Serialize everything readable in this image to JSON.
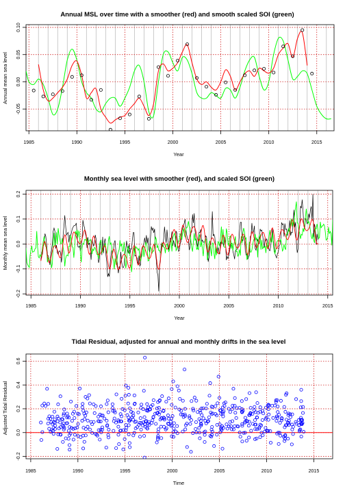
{
  "colors": {
    "smoother": "#ff0000",
    "soi": "#00ff00",
    "monthly_line": "#000000",
    "points": "#000000",
    "residual_points": "#0000ff",
    "zero_line": "#ff0000",
    "grid_red": "#cc0000",
    "grid_gray": "#bebebe"
  },
  "chart_data": [
    {
      "type": "line",
      "title": "Annual MSL over time with a smoother (red) and smooth scaled SOI (green)",
      "xlabel": "Year",
      "ylabel": "Annual mean sea level",
      "xlim": [
        1984.7,
        2016.8
      ],
      "ylim": [
        -0.09,
        0.105
      ],
      "x_ticks": [
        1985,
        1990,
        1995,
        2000,
        2005,
        2010,
        2015
      ],
      "x_tick_labels": [
        "1985",
        "1990",
        "1995",
        "2000",
        "2005",
        "2010",
        "2015"
      ],
      "y_ticks": [
        -0.05,
        0.0,
        0.05,
        0.1
      ],
      "y_tick_labels": [
        "-0.05",
        "0.00",
        "0.05",
        "0.10"
      ],
      "grid": "red dotted lines at the y ticks and at 1985, 1990, 1995, 2000, 2005, 2010, 2015; gray vertical lines at each year",
      "series": [
        {
          "name": "Annual MSL",
          "kind": "points",
          "color": "#000000",
          "x": [
            1985.5,
            1986.5,
            1987.5,
            1988.5,
            1989.5,
            1990.5,
            1991.5,
            1992.5,
            1993.5,
            1994.5,
            1995.5,
            1996.5,
            1997.5,
            1998.5,
            1999.5,
            2000.5,
            2001.5,
            2002.5,
            2003.5,
            2004.5,
            2005.5,
            2006.5,
            2007.5,
            2008.5,
            2009.5,
            2010.5,
            2011.5,
            2012.5,
            2013.5,
            2014.5
          ],
          "y": [
            -0.016,
            -0.027,
            -0.023,
            -0.017,
            0.009,
            0.012,
            -0.033,
            -0.015,
            -0.088,
            -0.067,
            -0.06,
            -0.027,
            -0.068,
            0.027,
            0.011,
            0.039,
            0.069,
            0.007,
            -0.009,
            -0.024,
            -0.001,
            -0.015,
            0.012,
            0.021,
            0.024,
            0.017,
            0.065,
            0.047,
            0.095,
            0.015
          ]
        },
        {
          "name": "Smoother",
          "kind": "line",
          "color": "#ff0000",
          "x": [
            1986.0,
            1986.5,
            1987.0,
            1987.5,
            1988.0,
            1988.5,
            1989.0,
            1989.5,
            1990.0,
            1990.5,
            1991.0,
            1991.5,
            1992.0,
            1992.5,
            1993.0,
            1993.5,
            1994.0,
            1994.5,
            1995.0,
            1995.5,
            1996.0,
            1996.5,
            1997.0,
            1997.5,
            1998.0,
            1998.5,
            1999.0,
            1999.5,
            2000.0,
            2000.5,
            2001.0,
            2001.5,
            2002.0,
            2002.5,
            2003.0,
            2003.5,
            2004.0,
            2004.5,
            2005.0,
            2005.5,
            2006.0,
            2006.5,
            2007.0,
            2007.5,
            2008.0,
            2008.5,
            2009.0,
            2009.5,
            2010.0,
            2010.5,
            2011.0,
            2011.5,
            2012.0,
            2012.5,
            2013.0,
            2013.5,
            2014.0
          ],
          "y": [
            0.032,
            -0.015,
            -0.035,
            -0.03,
            -0.02,
            -0.01,
            0.005,
            0.03,
            0.038,
            0.012,
            -0.03,
            -0.02,
            -0.013,
            -0.05,
            -0.065,
            -0.076,
            -0.07,
            -0.065,
            -0.062,
            -0.05,
            -0.04,
            -0.03,
            -0.045,
            -0.062,
            -0.04,
            0.02,
            0.033,
            0.02,
            0.025,
            0.035,
            0.055,
            0.068,
            0.035,
            0.005,
            -0.005,
            0.0,
            -0.01,
            -0.015,
            0.0,
            0.022,
            0.01,
            -0.015,
            0.0,
            0.015,
            0.02,
            0.01,
            0.025,
            0.02,
            0.016,
            0.025,
            0.05,
            0.062,
            0.07,
            0.045,
            0.08,
            0.09,
            0.03
          ]
        },
        {
          "name": "Scaled SOI",
          "kind": "line",
          "color": "#00ff00",
          "x": [
            1984.7,
            1985.0,
            1985.5,
            1986.0,
            1986.5,
            1987.0,
            1987.5,
            1988.0,
            1988.5,
            1989.0,
            1989.5,
            1990.0,
            1990.5,
            1991.0,
            1991.5,
            1992.0,
            1992.5,
            1993.0,
            1993.5,
            1994.0,
            1994.5,
            1995.0,
            1995.5,
            1996.0,
            1996.5,
            1997.0,
            1997.5,
            1998.0,
            1998.5,
            1999.0,
            1999.5,
            2000.0,
            2000.5,
            2001.0,
            2001.5,
            2002.0,
            2002.5,
            2003.0,
            2003.5,
            2004.0,
            2004.5,
            2005.0,
            2005.5,
            2006.0,
            2006.5,
            2007.0,
            2007.5,
            2008.0,
            2008.5,
            2009.0,
            2009.5,
            2010.0,
            2010.5,
            2011.0,
            2011.5,
            2012.0,
            2012.5,
            2013.0,
            2013.5,
            2014.0,
            2014.5,
            2015.0,
            2015.5,
            2016.0,
            2016.5
          ],
          "y": [
            0.02,
            0.0,
            -0.005,
            0.005,
            -0.005,
            -0.03,
            -0.06,
            -0.05,
            -0.01,
            0.04,
            0.06,
            0.04,
            0.0,
            -0.02,
            -0.03,
            -0.05,
            -0.055,
            -0.04,
            -0.03,
            -0.03,
            -0.045,
            -0.03,
            -0.01,
            0.02,
            0.03,
            0.0,
            -0.055,
            -0.062,
            0.0,
            0.05,
            0.055,
            0.035,
            0.02,
            0.045,
            0.04,
            0.015,
            -0.02,
            -0.03,
            -0.03,
            -0.02,
            -0.025,
            -0.03,
            -0.012,
            -0.015,
            -0.03,
            -0.01,
            0.02,
            0.04,
            0.045,
            0.01,
            -0.015,
            0.0,
            0.05,
            0.08,
            0.075,
            0.04,
            0.005,
            0.01,
            0.02,
            0.015,
            -0.015,
            -0.045,
            -0.06,
            -0.068,
            -0.068
          ]
        }
      ]
    },
    {
      "type": "line",
      "title": "Monthly sea level with smoother (red), and scaled SOI (green)",
      "xlabel": "Year",
      "ylabel": "Monthly mean sea level",
      "xlim": [
        1984.5,
        2015.5
      ],
      "ylim": [
        -0.205,
        0.215
      ],
      "x_ticks": [
        1985,
        1990,
        1995,
        2000,
        2005,
        2010,
        2015
      ],
      "x_tick_labels": [
        "1985",
        "1990",
        "1995",
        "2000",
        "2005",
        "2010",
        "2015"
      ],
      "y_ticks": [
        -0.2,
        -0.1,
        0.0,
        0.1,
        0.2
      ],
      "y_tick_labels": [
        "-0.2",
        "-0.1",
        "0.0",
        "0.1",
        "0.2"
      ],
      "grid": "red dotted lines at the y ticks and at 1985, 1990, 1995, 2000, 2005, 2010, 2015; gray vertical lines at each year",
      "monthly_start": 1986.0,
      "monthly_end": 2014.0,
      "soi_start": 1984.5,
      "soi_end": 2015.5,
      "anchors": {
        "x": [
          1986,
          1987,
          1988,
          1989,
          1990,
          1991,
          1992,
          1993,
          1994,
          1995,
          1996,
          1997,
          1998,
          1999,
          2000,
          2001,
          2002,
          2003,
          2004,
          2005,
          2006,
          2007,
          2008,
          2009,
          2010,
          2011,
          2012,
          2013,
          2014
        ],
        "y": [
          -0.03,
          -0.04,
          -0.02,
          0.01,
          0.03,
          0.0,
          -0.02,
          -0.06,
          -0.07,
          -0.06,
          -0.04,
          -0.03,
          -0.06,
          0.02,
          0.03,
          0.04,
          0.05,
          0.0,
          -0.01,
          0.0,
          0.01,
          0.0,
          0.02,
          0.02,
          0.02,
          0.05,
          0.06,
          0.08,
          0.04
        ]
      }
    },
    {
      "type": "scatter",
      "title": "Tidal Residual, adjusted for annual and monthly drifts in the sea level",
      "xlabel": "Time",
      "ylabel": "Adjusted Tidal Residual",
      "xlim": [
        1984.5,
        2017.0
      ],
      "ylim": [
        -0.22,
        0.66
      ],
      "x_ticks": [
        1985,
        1990,
        1995,
        2000,
        2005,
        2010,
        2015
      ],
      "x_tick_labels": [
        "1985",
        "1990",
        "1995",
        "2000",
        "2005",
        "2010",
        "2015"
      ],
      "y_ticks": [
        -0.2,
        0.0,
        0.2,
        0.4,
        0.6
      ],
      "y_tick_labels": [
        "-0.2",
        "0.0",
        "0.2",
        "0.4",
        "0.6"
      ],
      "grid": "red dotted lines at the y ticks and at 1985, 1990, 1995, 2000, 2005, 2010, 2015",
      "reference_line": 0.0,
      "point_start": 1986.0,
      "point_end": 2014.0,
      "points_per_year": 20,
      "center": 0.1,
      "spread": 0.11,
      "highlights": {
        "x": [
          1997.1,
          2001.3,
          2004.9,
          2000.1,
          1990.2
        ],
        "y": [
          0.63,
          0.53,
          0.47,
          0.43,
          0.37
        ]
      }
    }
  ]
}
